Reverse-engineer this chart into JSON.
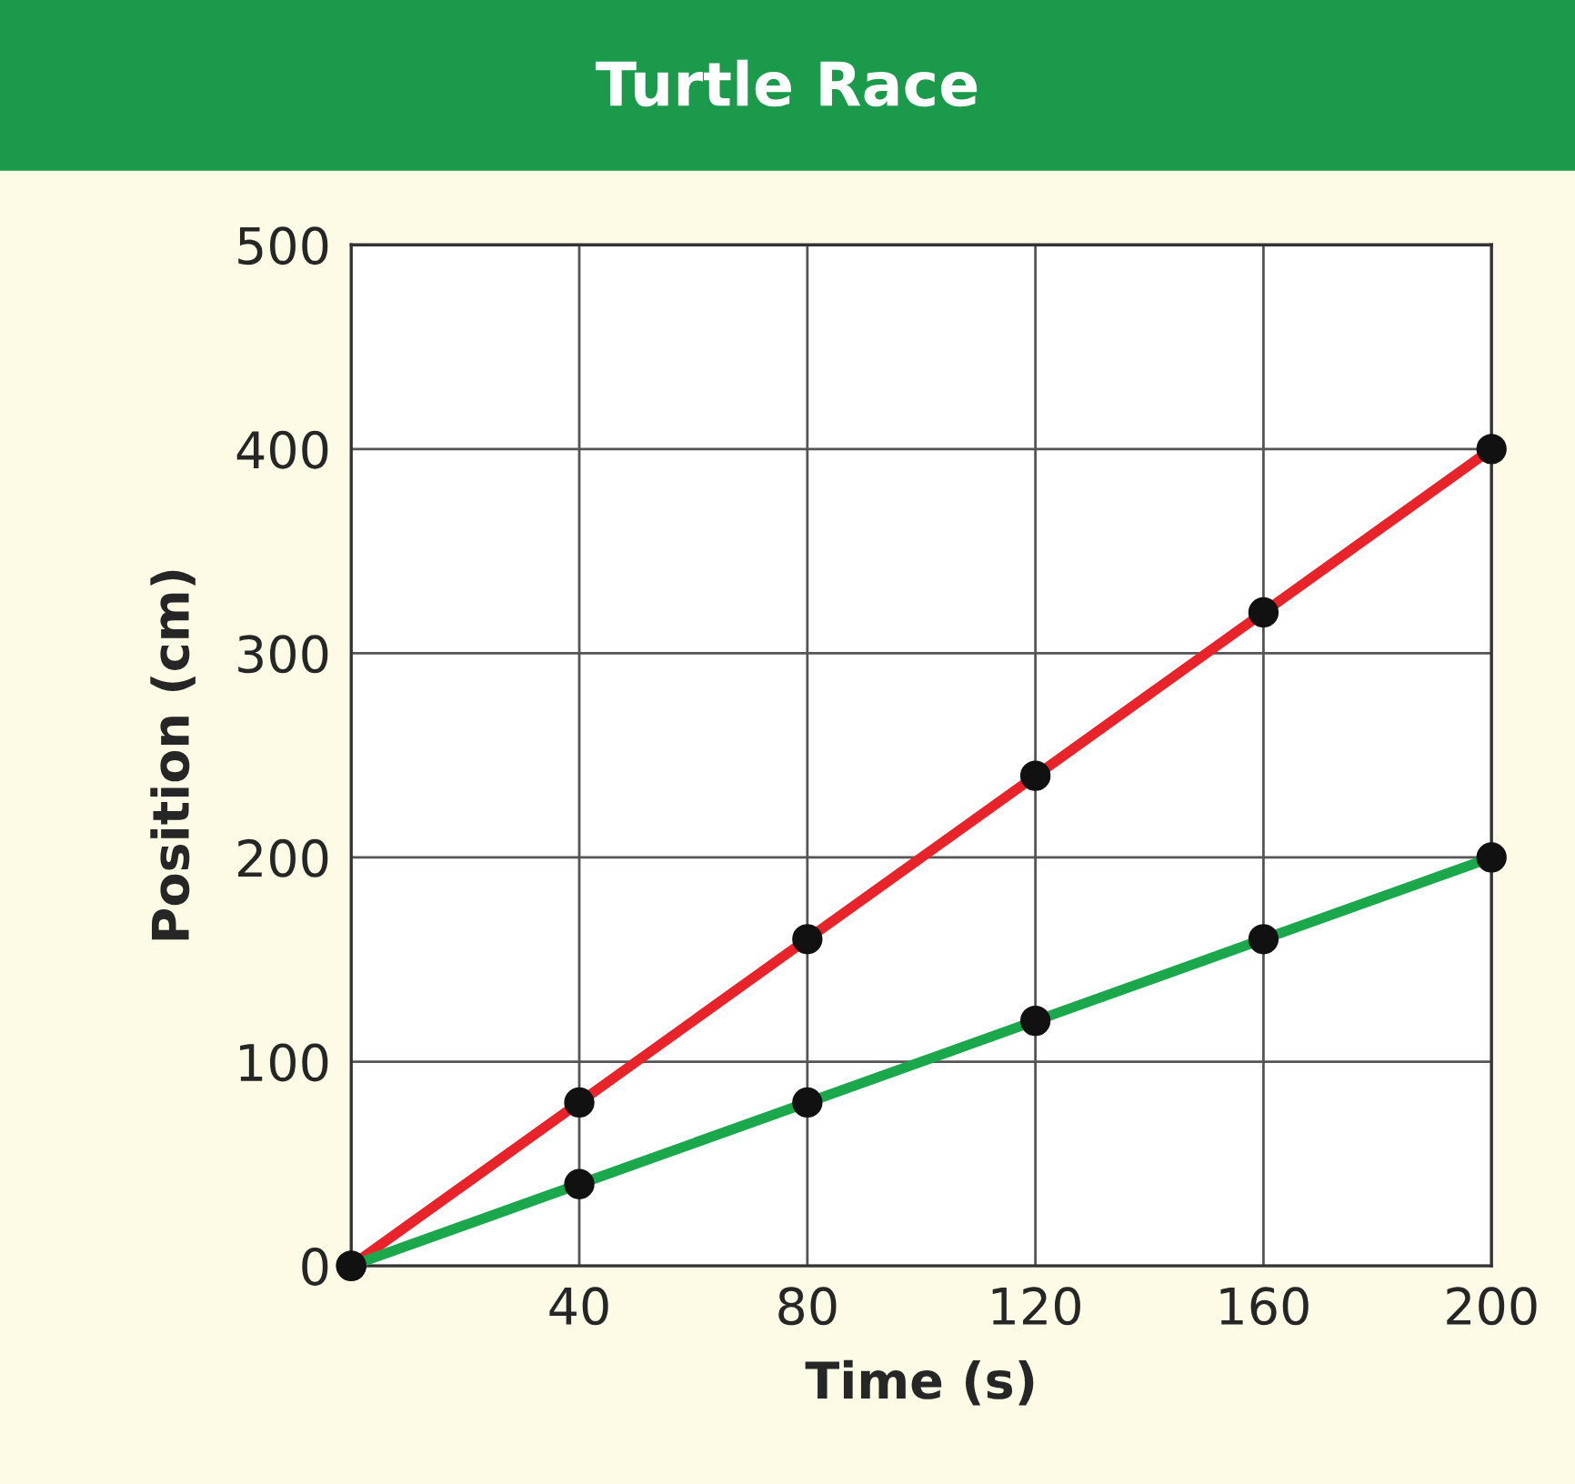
{
  "chart_data": {
    "type": "line",
    "title": "Turtle Race",
    "xlabel": "Time (s)",
    "ylabel": "Position (cm)",
    "x": [
      0,
      40,
      80,
      120,
      160,
      200
    ],
    "series": [
      {
        "color": "#e8232a",
        "values": [
          0,
          80,
          160,
          240,
          320,
          400
        ]
      },
      {
        "color": "#1ba84c",
        "values": [
          0,
          40,
          80,
          120,
          160,
          200
        ]
      }
    ],
    "xlim": [
      0,
      200
    ],
    "ylim": [
      0,
      500
    ],
    "xticks": [
      40,
      80,
      120,
      160,
      200
    ],
    "yticks": [
      0,
      100,
      200,
      300,
      400,
      500
    ],
    "grid": true,
    "marker": "circle",
    "line_style": "solid"
  }
}
